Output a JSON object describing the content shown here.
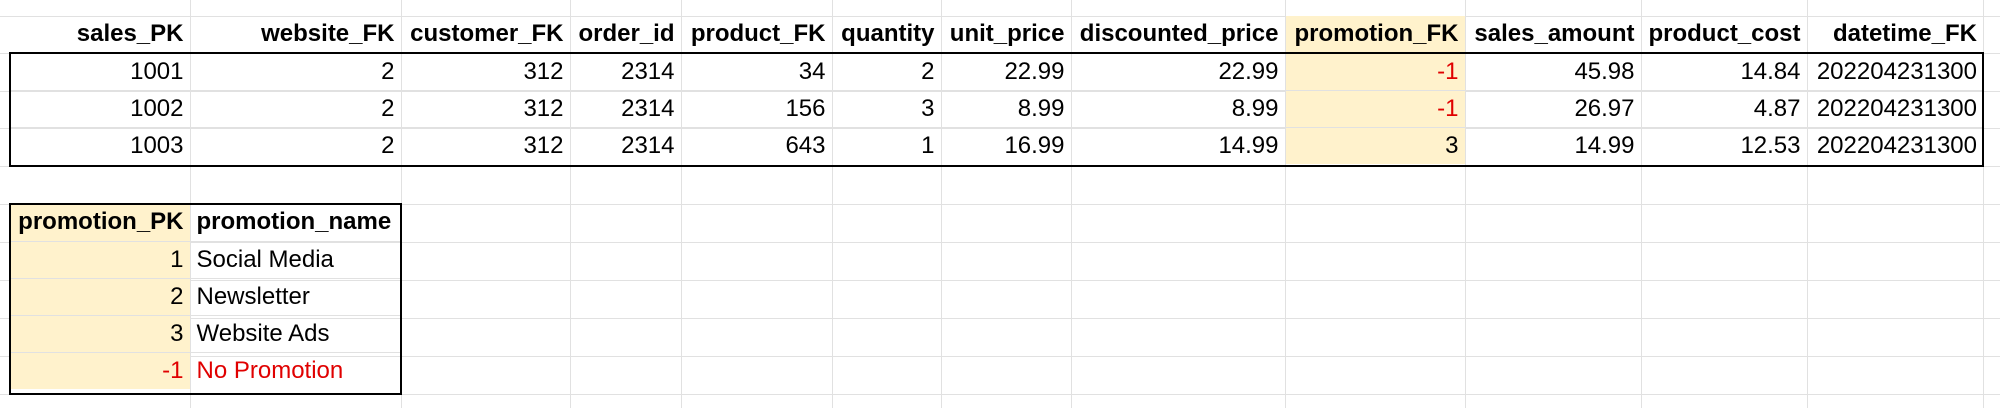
{
  "sales_table": {
    "headers": [
      "sales_PK",
      "website_FK",
      "customer_FK",
      "order_id",
      "product_FK",
      "quantity",
      "unit_price",
      "discounted_price",
      "promotion_FK",
      "sales_amount",
      "product_cost",
      "datetime_FK"
    ],
    "rows": [
      [
        "1001",
        "2",
        "312",
        "2314",
        "34",
        "2",
        "22.99",
        "22.99",
        "-1",
        "45.98",
        "14.84",
        "202204231300"
      ],
      [
        "1002",
        "2",
        "312",
        "2314",
        "156",
        "3",
        "8.99",
        "8.99",
        "-1",
        "26.97",
        "4.87",
        "202204231300"
      ],
      [
        "1003",
        "2",
        "312",
        "2314",
        "643",
        "1",
        "16.99",
        "14.99",
        "3",
        "14.99",
        "12.53",
        "202204231300"
      ]
    ]
  },
  "promotion_table": {
    "headers": [
      "promotion_PK",
      "promotion_name"
    ],
    "rows": [
      [
        "1",
        "Social Media"
      ],
      [
        "2",
        "Newsletter"
      ],
      [
        "3",
        "Website Ads"
      ],
      [
        "-1",
        "No Promotion"
      ]
    ]
  },
  "colors": {
    "highlight": "#fff2cc",
    "negative_text": "#e00000",
    "gridline": "#e1e1e1",
    "border": "#000000"
  }
}
